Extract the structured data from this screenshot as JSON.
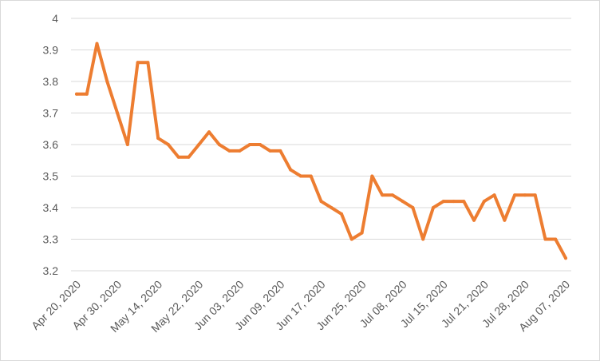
{
  "chart_data": {
    "type": "line",
    "title": "",
    "xlabel": "",
    "ylabel": "",
    "ylim": [
      3.2,
      4.0
    ],
    "yticks": [
      "3.2",
      "3.3",
      "3.4",
      "3.5",
      "3.6",
      "3.7",
      "3.8",
      "3.9",
      "4"
    ],
    "grid": true,
    "legend": "none",
    "line_color": "#ED7D31",
    "xtick_labels": [
      "Apr 20, 2020",
      "Apr 30, 2020",
      "May 14, 2020",
      "May 22, 2020",
      "Jun 03, 2020",
      "Jun 09, 2020",
      "Jun 17, 2020",
      "Jun 25, 2020",
      "Jul 08, 2020",
      "Jul 15, 2020",
      "Jul 21, 2020",
      "Jul 28, 2020",
      "Aug 07, 2020"
    ],
    "xtick_index": [
      0,
      4,
      8,
      12,
      16,
      20,
      24,
      28,
      32,
      36,
      40,
      44,
      48
    ],
    "series": [
      {
        "values": [
          3.76,
          3.76,
          3.92,
          3.8,
          3.7,
          3.6,
          3.86,
          3.86,
          3.62,
          3.6,
          3.56,
          3.56,
          3.6,
          3.64,
          3.6,
          3.58,
          3.58,
          3.6,
          3.6,
          3.58,
          3.58,
          3.52,
          3.5,
          3.5,
          3.42,
          3.4,
          3.38,
          3.3,
          3.32,
          3.5,
          3.44,
          3.44,
          3.42,
          3.4,
          3.3,
          3.4,
          3.42,
          3.42,
          3.42,
          3.36,
          3.42,
          3.44,
          3.36,
          3.44,
          3.44,
          3.44,
          3.3,
          3.3,
          3.24
        ]
      }
    ]
  }
}
